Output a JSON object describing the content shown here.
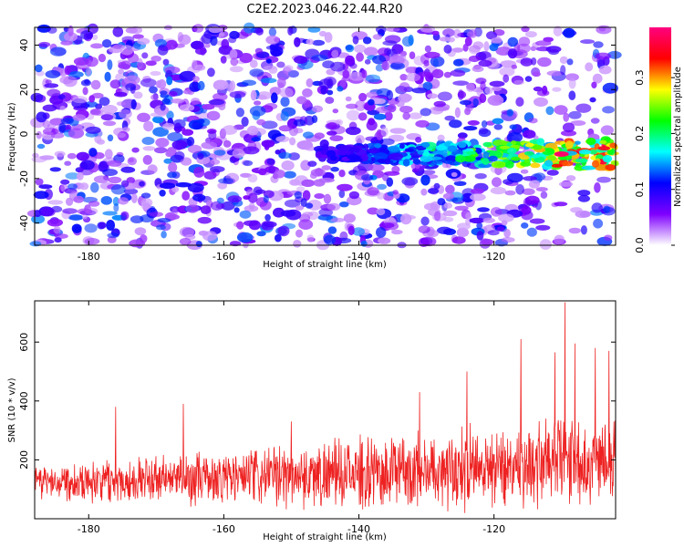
{
  "title": "C2E2.2023.046.22.44.R20",
  "chart_data": [
    {
      "type": "heatmap",
      "title": "C2E2.2023.046.22.44.R20",
      "xlabel": "Height of straight line (km)",
      "ylabel": "Frequency (Hz)",
      "xlim": [
        -188,
        -102
      ],
      "ylim": [
        -50,
        48
      ],
      "x_ticks": [
        -180,
        -160,
        -140,
        -120
      ],
      "y_ticks": [
        -40,
        -20,
        0,
        20,
        40
      ],
      "colorbar": {
        "label": "Normalized spectral amplitude",
        "range": [
          0.0,
          0.39
        ],
        "ticks": [
          0.0,
          0.1,
          0.2,
          0.3
        ],
        "colormap": [
          "#ffffff",
          "#7f00ff",
          "#0000ff",
          "#00ffff",
          "#00ff00",
          "#ffff00",
          "#ff0000",
          "#ff0080"
        ]
      },
      "signal_band": {
        "frequency_hz": -9,
        "x_start_km": -146,
        "x_end_km": -102,
        "peak_x_km": -110,
        "peak_amplitude": 0.38
      }
    },
    {
      "type": "line",
      "xlabel": "Height of straight line (km)",
      "ylabel": "SNR (10 * v/v)",
      "xlim": [
        -188,
        -102
      ],
      "ylim": [
        0,
        740
      ],
      "x_ticks": [
        -180,
        -160,
        -140,
        -120
      ],
      "y_ticks": [
        200,
        400,
        600
      ],
      "series": [
        {
          "name": "SNR",
          "color": "#ee2222",
          "baseline_mean_start": 130,
          "baseline_mean_end": 210,
          "peaks": [
            {
              "x": -109.5,
              "y": 735
            },
            {
              "x": -116,
              "y": 610
            },
            {
              "x": -108,
              "y": 595
            },
            {
              "x": -105,
              "y": 580
            },
            {
              "x": -103,
              "y": 570
            },
            {
              "x": -111,
              "y": 565
            },
            {
              "x": -124,
              "y": 500
            },
            {
              "x": -131,
              "y": 430
            },
            {
              "x": -150,
              "y": 330
            },
            {
              "x": -166,
              "y": 390
            },
            {
              "x": -176,
              "y": 380
            }
          ]
        }
      ]
    }
  ]
}
